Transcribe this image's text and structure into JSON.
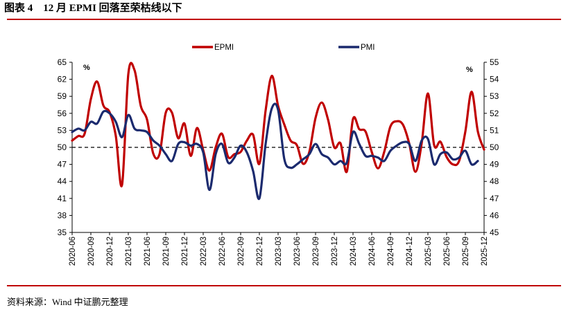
{
  "header": {
    "title": "图表 4    12 月 EPMI 回落至荣枯线以下"
  },
  "footer": {
    "source": "资料来源：Wind 中证鹏元整理"
  },
  "chart_data": {
    "type": "line",
    "title": "",
    "colors": {
      "EPMI": "#C00000",
      "PMI": "#1B2A6E",
      "reference": "#000000"
    },
    "left_axis": {
      "unit": "%",
      "ylim": [
        35,
        65
      ],
      "ticks": [
        35,
        38,
        41,
        44,
        47,
        50,
        53,
        56,
        59,
        62,
        65
      ]
    },
    "right_axis": {
      "unit": "%",
      "ylim": [
        45,
        55
      ],
      "ticks": [
        45,
        46,
        47,
        48,
        49,
        50,
        51,
        52,
        53,
        54,
        55
      ]
    },
    "reference_line": {
      "value": 50,
      "style": "dashed"
    },
    "legend": {
      "placement": "top",
      "entries": [
        "EPMI",
        "PMI"
      ]
    },
    "x_tick_labels": [
      "2020-06",
      "2020-09",
      "2020-12",
      "2021-03",
      "2021-06",
      "2021-09",
      "2021-12",
      "2022-03",
      "2022-06",
      "2022-09",
      "2022-12",
      "2023-03",
      "2023-06",
      "2023-09",
      "2023-12",
      "2024-03",
      "2024-06",
      "2024-09",
      "2024-12",
      "2025-03",
      "2025-06",
      "2025-09",
      "2025-12"
    ],
    "x_start": "2020-06",
    "x_end": "2025-12",
    "series": [
      {
        "name": "EPMI",
        "axis": "left",
        "values": [
          51.2,
          52.0,
          52.4,
          58.5,
          61.6,
          57.4,
          56.2,
          52.0,
          43.4,
          62.9,
          63.6,
          57.3,
          54.9,
          48.9,
          48.8,
          56.1,
          56.1,
          51.6,
          54.2,
          48.5,
          53.4,
          49.5,
          45.9,
          50.0,
          52.4,
          48.3,
          48.8,
          49.2,
          51.2,
          52.2,
          47.1,
          56.5,
          62.6,
          57.3,
          54.0,
          51.2,
          50.4,
          47.1,
          49.2,
          55.2,
          57.9,
          54.9,
          50.0,
          50.7,
          45.7,
          55.0,
          53.2,
          52.8,
          49.2,
          46.3,
          49.2,
          53.7,
          54.6,
          54.0,
          50.7,
          45.7,
          50.7,
          59.5,
          50.4,
          51.0,
          48.3,
          47.0,
          47.6,
          52.8,
          59.8,
          52.8,
          49.6
        ]
      },
      {
        "name": "PMI",
        "axis": "right",
        "values": [
          50.9,
          51.1,
          51.0,
          51.5,
          51.4,
          52.1,
          52.0,
          51.5,
          50.6,
          51.9,
          51.1,
          51.0,
          50.9,
          50.4,
          50.1,
          49.6,
          49.2,
          50.2,
          50.3,
          50.1,
          50.2,
          49.7,
          47.5,
          49.6,
          50.2,
          49.1,
          49.4,
          50.1,
          49.7,
          48.6,
          47.0,
          50.2,
          52.3,
          52.2,
          49.3,
          48.8,
          49.0,
          49.3,
          49.6,
          50.2,
          49.6,
          49.4,
          49.0,
          49.2,
          49.1,
          50.9,
          50.2,
          49.5,
          49.5,
          49.4,
          49.2,
          49.8,
          50.1,
          50.3,
          50.2,
          49.2,
          50.4,
          50.5,
          49.0,
          49.6,
          49.7,
          49.3,
          49.4,
          49.8,
          49.0,
          49.2
        ]
      }
    ]
  }
}
